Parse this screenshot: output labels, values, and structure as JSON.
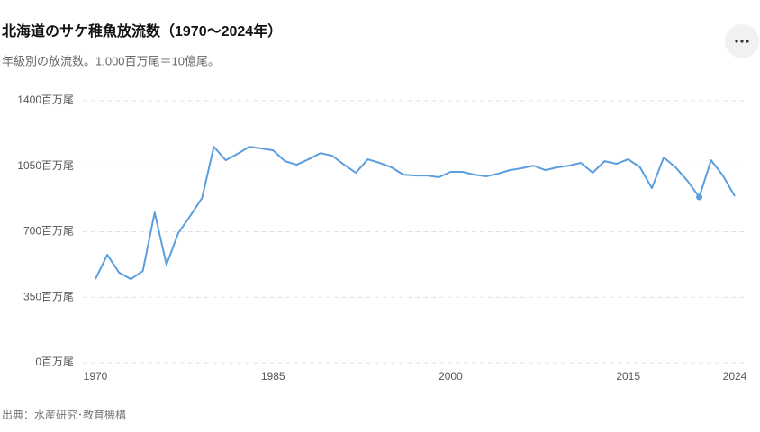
{
  "chart_data": {
    "type": "line",
    "title": "北海道のサケ稚魚放流数（1970〜2024年）",
    "subtitle": "年級別の放流数。1,000百万尾＝10億尾。",
    "source": "出典：水産研究･教育機構",
    "x": [
      1970,
      1971,
      1972,
      1973,
      1974,
      1975,
      1976,
      1977,
      1978,
      1979,
      1980,
      1981,
      1982,
      1983,
      1984,
      1985,
      1986,
      1987,
      1988,
      1989,
      1990,
      1991,
      1992,
      1993,
      1994,
      1995,
      1996,
      1997,
      1998,
      1999,
      2000,
      2001,
      2002,
      2003,
      2004,
      2005,
      2006,
      2007,
      2008,
      2009,
      2010,
      2011,
      2012,
      2013,
      2014,
      2015,
      2016,
      2017,
      2018,
      2019,
      2020,
      2021,
      2022,
      2023,
      2024
    ],
    "series": [
      {
        "color": "#5b9ee0",
        "values": [
          447,
          577,
          481,
          447,
          490,
          803,
          524,
          693,
          784,
          880,
          1154,
          1082,
          1116,
          1154,
          1145,
          1135,
          1077,
          1058,
          1087,
          1120,
          1106,
          1058,
          1015,
          1087,
          1068,
          1044,
          1005,
          1000,
          1000,
          991,
          1020,
          1020,
          1005,
          996,
          1010,
          1029,
          1039,
          1053,
          1029,
          1044,
          1053,
          1068,
          1015,
          1077,
          1063,
          1087,
          1044,
          933,
          1097,
          1044,
          972,
          885,
          1082,
          1000,
          890
        ]
      }
    ],
    "highlight_x": 2021,
    "xlim": [
      1970,
      2024
    ],
    "xticks": [
      1970,
      1985,
      2000,
      2015,
      2024
    ],
    "ylim": [
      0,
      1400
    ],
    "yticks": [
      {
        "value": 0,
        "label": "0百万尾"
      },
      {
        "value": 350,
        "label": "350百万尾"
      },
      {
        "value": 700,
        "label": "700百万尾"
      },
      {
        "value": 1050,
        "label": "1050百万尾"
      },
      {
        "value": 1400,
        "label": "1400百万尾"
      }
    ],
    "grid": true
  }
}
